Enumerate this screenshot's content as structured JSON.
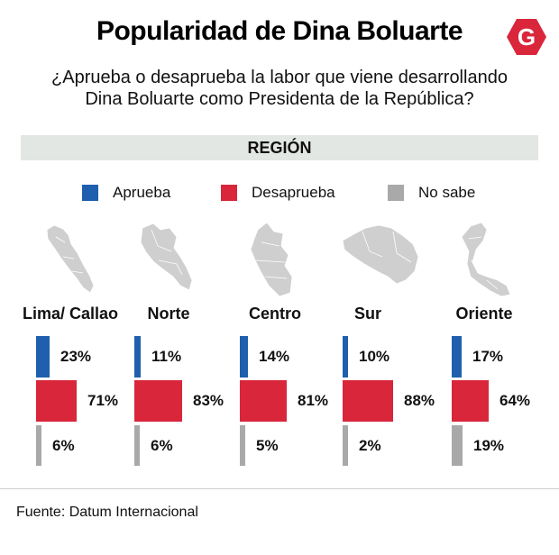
{
  "title": "Popularidad de Dina Boluarte",
  "logo_letter": "G",
  "subtitle_line1": "¿Aprueba o desaprueba la labor que viene desarrollando",
  "subtitle_line2": "Dina Boluarte como Presidenta de la República?",
  "region_header": "REGIÓN",
  "source": "Fuente: Datum Internacional",
  "colors": {
    "aprueba": "#1f5fae",
    "desaprueba": "#d9263b",
    "no_sabe": "#a9a9a9",
    "map": "#cfcfcf",
    "logo": "#d9263b"
  },
  "chart_data": {
    "type": "bar",
    "orientation": "horizontal",
    "title": "Popularidad de Dina Boluarte",
    "unit": "%",
    "categories": [
      "Lima/ Callao",
      "Norte",
      "Centro",
      "Sur",
      "Oriente"
    ],
    "series": [
      {
        "name": "Aprueba",
        "values": [
          23,
          11,
          14,
          10,
          17
        ],
        "labels": [
          "23%",
          "11%",
          "14%",
          "10%",
          "17%"
        ]
      },
      {
        "name": "Desaprueba",
        "values": [
          71,
          83,
          81,
          88,
          64
        ],
        "labels": [
          "71%",
          "83%",
          "81%",
          "88%",
          "64%"
        ]
      },
      {
        "name": "No sabe",
        "values": [
          6,
          6,
          5,
          2,
          19
        ],
        "labels": [
          "6%",
          "6%",
          "5%",
          "2%",
          "19%"
        ]
      }
    ]
  }
}
